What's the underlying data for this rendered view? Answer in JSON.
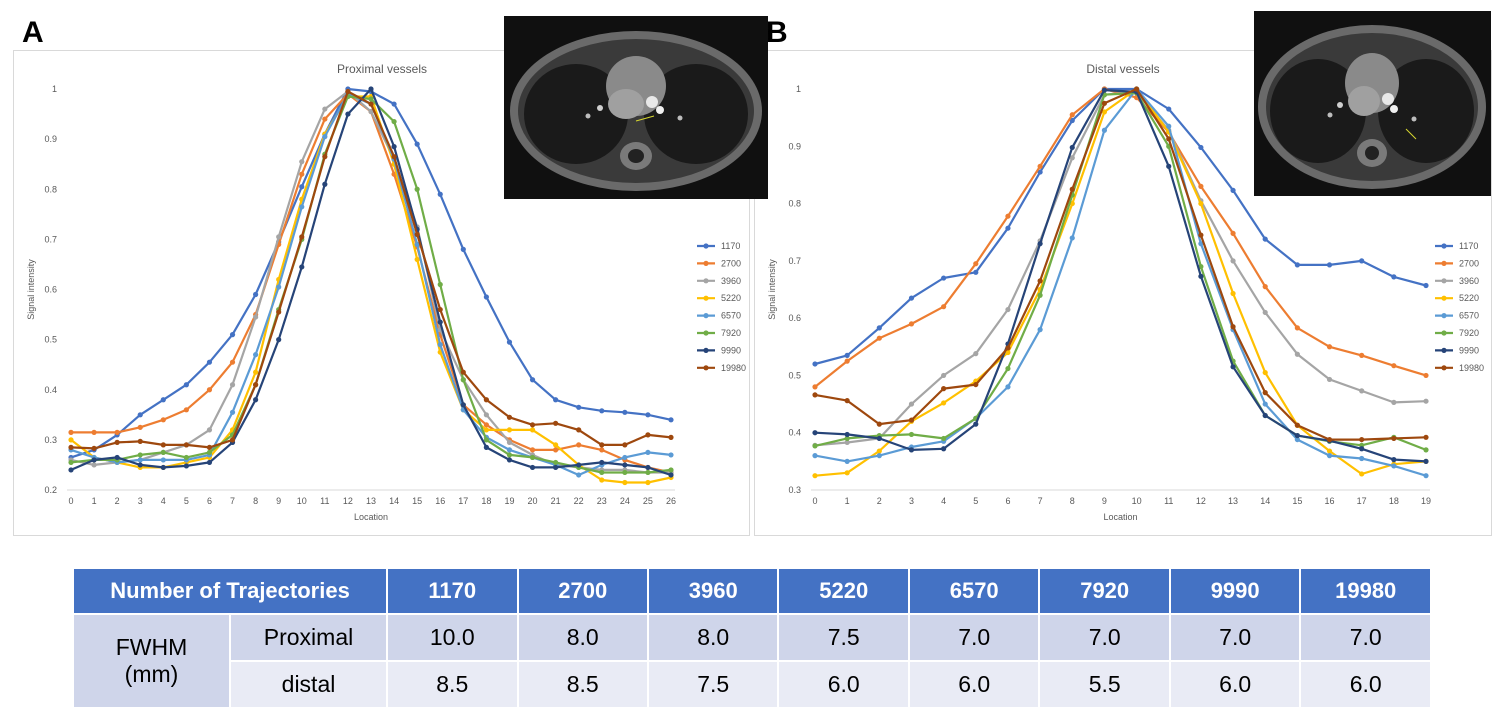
{
  "panels": {
    "a_label": "A",
    "b_label": "B"
  },
  "colors": {
    "1170": "#4472c4",
    "2700": "#ed7d31",
    "3960": "#a5a5a5",
    "5220": "#ffc000",
    "6570": "#5b9bd5",
    "7920": "#70ad47",
    "9990": "#264478",
    "19980": "#9e480e"
  },
  "chart_data": [
    {
      "type": "line",
      "title": "Proximal vessels",
      "xlabel": "Location",
      "ylabel": "Signal intensity",
      "ylim": [
        0.2,
        1.0
      ],
      "yticks": [
        "0.2",
        "0.3",
        "0.4",
        "0.5",
        "0.6",
        "0.7",
        "0.8",
        "0.9",
        "1"
      ],
      "x": [
        0,
        1,
        2,
        3,
        4,
        5,
        6,
        7,
        8,
        9,
        10,
        11,
        12,
        13,
        14,
        15,
        16,
        17,
        18,
        19,
        20,
        21,
        22,
        23,
        24,
        25,
        26
      ],
      "legend_position": "right",
      "series": [
        {
          "name": "1170",
          "values": [
            0.265,
            0.28,
            0.31,
            0.35,
            0.38,
            0.41,
            0.455,
            0.51,
            0.59,
            0.695,
            0.805,
            0.91,
            1.0,
            0.995,
            0.97,
            0.89,
            0.79,
            0.68,
            0.585,
            0.495,
            0.42,
            0.38,
            0.365,
            0.358,
            0.355,
            0.35,
            0.34
          ]
        },
        {
          "name": "2700",
          "values": [
            0.315,
            0.315,
            0.315,
            0.325,
            0.34,
            0.36,
            0.4,
            0.455,
            0.55,
            0.69,
            0.83,
            0.94,
            0.99,
            0.955,
            0.83,
            0.685,
            0.51,
            0.37,
            0.33,
            0.3,
            0.28,
            0.28,
            0.29,
            0.28,
            0.26,
            0.245,
            0.235
          ]
        },
        {
          "name": "3960",
          "values": [
            0.26,
            0.25,
            0.255,
            0.26,
            0.275,
            0.29,
            0.32,
            0.41,
            0.545,
            0.705,
            0.855,
            0.96,
            0.995,
            0.955,
            0.86,
            0.725,
            0.52,
            0.42,
            0.35,
            0.295,
            0.27,
            0.25,
            0.245,
            0.24,
            0.24,
            0.235,
            0.235
          ]
        },
        {
          "name": "5220",
          "values": [
            0.3,
            0.265,
            0.255,
            0.245,
            0.245,
            0.255,
            0.265,
            0.32,
            0.435,
            0.62,
            0.78,
            0.91,
            0.985,
            0.985,
            0.85,
            0.66,
            0.475,
            0.36,
            0.32,
            0.32,
            0.32,
            0.29,
            0.25,
            0.22,
            0.215,
            0.215,
            0.225
          ]
        },
        {
          "name": "6570",
          "values": [
            0.28,
            0.265,
            0.255,
            0.26,
            0.26,
            0.26,
            0.27,
            0.355,
            0.47,
            0.605,
            0.765,
            0.905,
            0.99,
            0.97,
            0.86,
            0.69,
            0.49,
            0.36,
            0.305,
            0.28,
            0.265,
            0.25,
            0.23,
            0.25,
            0.265,
            0.275,
            0.27
          ]
        },
        {
          "name": "7920",
          "values": [
            0.255,
            0.26,
            0.26,
            0.27,
            0.275,
            0.265,
            0.275,
            0.31,
            0.41,
            0.56,
            0.7,
            0.87,
            0.985,
            0.98,
            0.935,
            0.8,
            0.61,
            0.42,
            0.3,
            0.27,
            0.265,
            0.255,
            0.245,
            0.235,
            0.235,
            0.235,
            0.24
          ]
        },
        {
          "name": "9990",
          "values": [
            0.24,
            0.26,
            0.265,
            0.25,
            0.245,
            0.248,
            0.255,
            0.295,
            0.38,
            0.5,
            0.645,
            0.81,
            0.95,
            1.0,
            0.885,
            0.72,
            0.535,
            0.37,
            0.285,
            0.26,
            0.245,
            0.245,
            0.25,
            0.255,
            0.25,
            0.245,
            0.23
          ]
        },
        {
          "name": "19980",
          "values": [
            0.285,
            0.283,
            0.295,
            0.297,
            0.29,
            0.29,
            0.285,
            0.3,
            0.41,
            0.555,
            0.705,
            0.865,
            0.995,
            0.97,
            0.865,
            0.71,
            0.56,
            0.435,
            0.38,
            0.345,
            0.33,
            0.333,
            0.32,
            0.29,
            0.29,
            0.31,
            0.305
          ]
        }
      ]
    },
    {
      "type": "line",
      "title": "Distal vessels",
      "xlabel": "Location",
      "ylabel": "Signal intensity",
      "ylim": [
        0.3,
        1.0
      ],
      "yticks": [
        "0.3",
        "0.4",
        "0.5",
        "0.6",
        "0.7",
        "0.8",
        "0.9",
        "1"
      ],
      "x": [
        0,
        1,
        2,
        3,
        4,
        5,
        6,
        7,
        8,
        9,
        10,
        11,
        12,
        13,
        14,
        15,
        16,
        17,
        18,
        19
      ],
      "legend_position": "right",
      "series": [
        {
          "name": "1170",
          "values": [
            0.52,
            0.535,
            0.583,
            0.635,
            0.67,
            0.68,
            0.757,
            0.855,
            0.945,
            1.0,
            1.0,
            0.965,
            0.898,
            0.823,
            0.738,
            0.693,
            0.693,
            0.7,
            0.672,
            0.657
          ]
        },
        {
          "name": "2700",
          "values": [
            0.48,
            0.525,
            0.565,
            0.59,
            0.62,
            0.695,
            0.778,
            0.865,
            0.955,
            1.0,
            0.985,
            0.925,
            0.83,
            0.748,
            0.655,
            0.583,
            0.55,
            0.535,
            0.517,
            0.5
          ]
        },
        {
          "name": "3960",
          "values": [
            0.378,
            0.383,
            0.39,
            0.45,
            0.5,
            0.538,
            0.615,
            0.735,
            0.88,
            0.99,
            0.995,
            0.928,
            0.805,
            0.7,
            0.61,
            0.537,
            0.493,
            0.473,
            0.453,
            0.455
          ]
        },
        {
          "name": "5220",
          "values": [
            0.325,
            0.33,
            0.368,
            0.42,
            0.452,
            0.49,
            0.54,
            0.65,
            0.8,
            0.96,
            1.0,
            0.925,
            0.8,
            0.643,
            0.505,
            0.413,
            0.368,
            0.328,
            0.345,
            0.35
          ]
        },
        {
          "name": "6570",
          "values": [
            0.36,
            0.35,
            0.36,
            0.375,
            0.385,
            0.425,
            0.48,
            0.58,
            0.74,
            0.928,
            1.0,
            0.935,
            0.73,
            0.58,
            0.45,
            0.388,
            0.36,
            0.355,
            0.342,
            0.325
          ]
        },
        {
          "name": "7920",
          "values": [
            0.377,
            0.39,
            0.395,
            0.397,
            0.39,
            0.425,
            0.512,
            0.64,
            0.815,
            0.99,
            0.993,
            0.9,
            0.69,
            0.525,
            0.43,
            0.395,
            0.385,
            0.378,
            0.392,
            0.37
          ]
        },
        {
          "name": "9990",
          "values": [
            0.4,
            0.397,
            0.39,
            0.37,
            0.372,
            0.415,
            0.555,
            0.73,
            0.898,
            0.998,
            0.995,
            0.865,
            0.673,
            0.515,
            0.43,
            0.395,
            0.386,
            0.372,
            0.353,
            0.35
          ]
        },
        {
          "name": "19980",
          "values": [
            0.466,
            0.456,
            0.415,
            0.422,
            0.477,
            0.484,
            0.548,
            0.665,
            0.825,
            0.975,
            1.0,
            0.913,
            0.745,
            0.585,
            0.47,
            0.413,
            0.388,
            0.388,
            0.39,
            0.392
          ]
        }
      ]
    }
  ],
  "table": {
    "header": "Number of Trajectories",
    "columns": [
      "1170",
      "2700",
      "3960",
      "5220",
      "6570",
      "7920",
      "9990",
      "19980"
    ],
    "metric_line1": "FWHM",
    "metric_line2": "(mm)",
    "rows": [
      {
        "label": "Proximal",
        "values": [
          "10.0",
          "8.0",
          "8.0",
          "7.5",
          "7.0",
          "7.0",
          "7.0",
          "7.0"
        ]
      },
      {
        "label": "distal",
        "values": [
          "8.5",
          "8.5",
          "7.5",
          "6.0",
          "6.0",
          "5.5",
          "6.0",
          "6.0"
        ]
      }
    ]
  }
}
